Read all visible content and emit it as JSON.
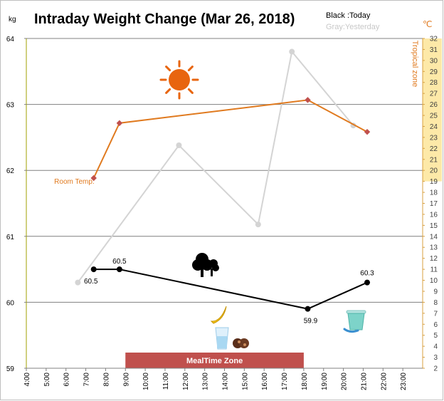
{
  "chart_data": {
    "type": "line",
    "title": "Intraday Weight Change (Mar 26, 2018)",
    "ylabel_left": "kg",
    "ylabel_right": "℃",
    "ylim_left": [
      59,
      64
    ],
    "yticks_left": [
      "59",
      "60",
      "61",
      "62",
      "63",
      "64"
    ],
    "ylim_right": [
      2,
      32
    ],
    "yticks_right": [
      "2",
      "3",
      "4",
      "5",
      "6",
      "7",
      "8",
      "9",
      "10",
      "11",
      "12",
      "13",
      "14",
      "15",
      "16",
      "17",
      "18",
      "19",
      "20",
      "21",
      "22",
      "23",
      "24",
      "25",
      "26",
      "27",
      "28",
      "29",
      "30",
      "31",
      "32"
    ],
    "xticks": [
      "4:00",
      "5:00",
      "6:00",
      "7:00",
      "8:00",
      "9:00",
      "10:00",
      "11:00",
      "12:00",
      "13:00",
      "14:00",
      "15:00",
      "16:00",
      "17:00",
      "18:00",
      "19:00",
      "20:00",
      "21:00",
      "22:00",
      "23:00"
    ],
    "xlim": [
      4,
      24
    ],
    "grid": "horizontal",
    "legend": {
      "today": "Black :Today",
      "yesterday": "Gray:Yesterday"
    },
    "series": [
      {
        "key": "today",
        "axis": "left",
        "color": "#000000",
        "x": [
          7.4,
          8.7,
          18.2,
          21.2
        ],
        "y": [
          60.5,
          60.5,
          59.9,
          60.3
        ],
        "labels": [
          "60.5",
          "60.5",
          "59.9",
          "60.3"
        ]
      },
      {
        "key": "yesterday",
        "axis": "left",
        "color": "#d4d4d4",
        "x": [
          6.6,
          11.7,
          15.7,
          17.4,
          20.5
        ],
        "y": [
          60.3,
          62.38,
          61.18,
          63.8,
          62.68
        ]
      },
      {
        "key": "room_temp",
        "axis": "right",
        "color": "#e07a1f",
        "x": [
          7.4,
          8.7,
          18.2,
          21.2
        ],
        "y": [
          19.3,
          24.3,
          26.4,
          23.5
        ]
      }
    ],
    "annotations": {
      "room_temp_label": "Room Temp.",
      "tropical_zone_label": "Tropical zone",
      "tropical_zone_range": [
        19,
        32
      ],
      "meal_zone_label": "MealTime Zone",
      "meal_zone_range": [
        9.0,
        18.0
      ]
    },
    "colors": {
      "today": "#000000",
      "yesterday": "#d4d4d4",
      "room_temp": "#e07a1f",
      "tropical_band": "#fde9a8",
      "meal_band": "#c0504d",
      "sun": "#e8650f",
      "grid": "#808080"
    },
    "icons": [
      "sun-icon",
      "tree-icon",
      "banana-icon",
      "water-glass-icon",
      "cookie-icon",
      "yogurt-cup-icon"
    ]
  }
}
